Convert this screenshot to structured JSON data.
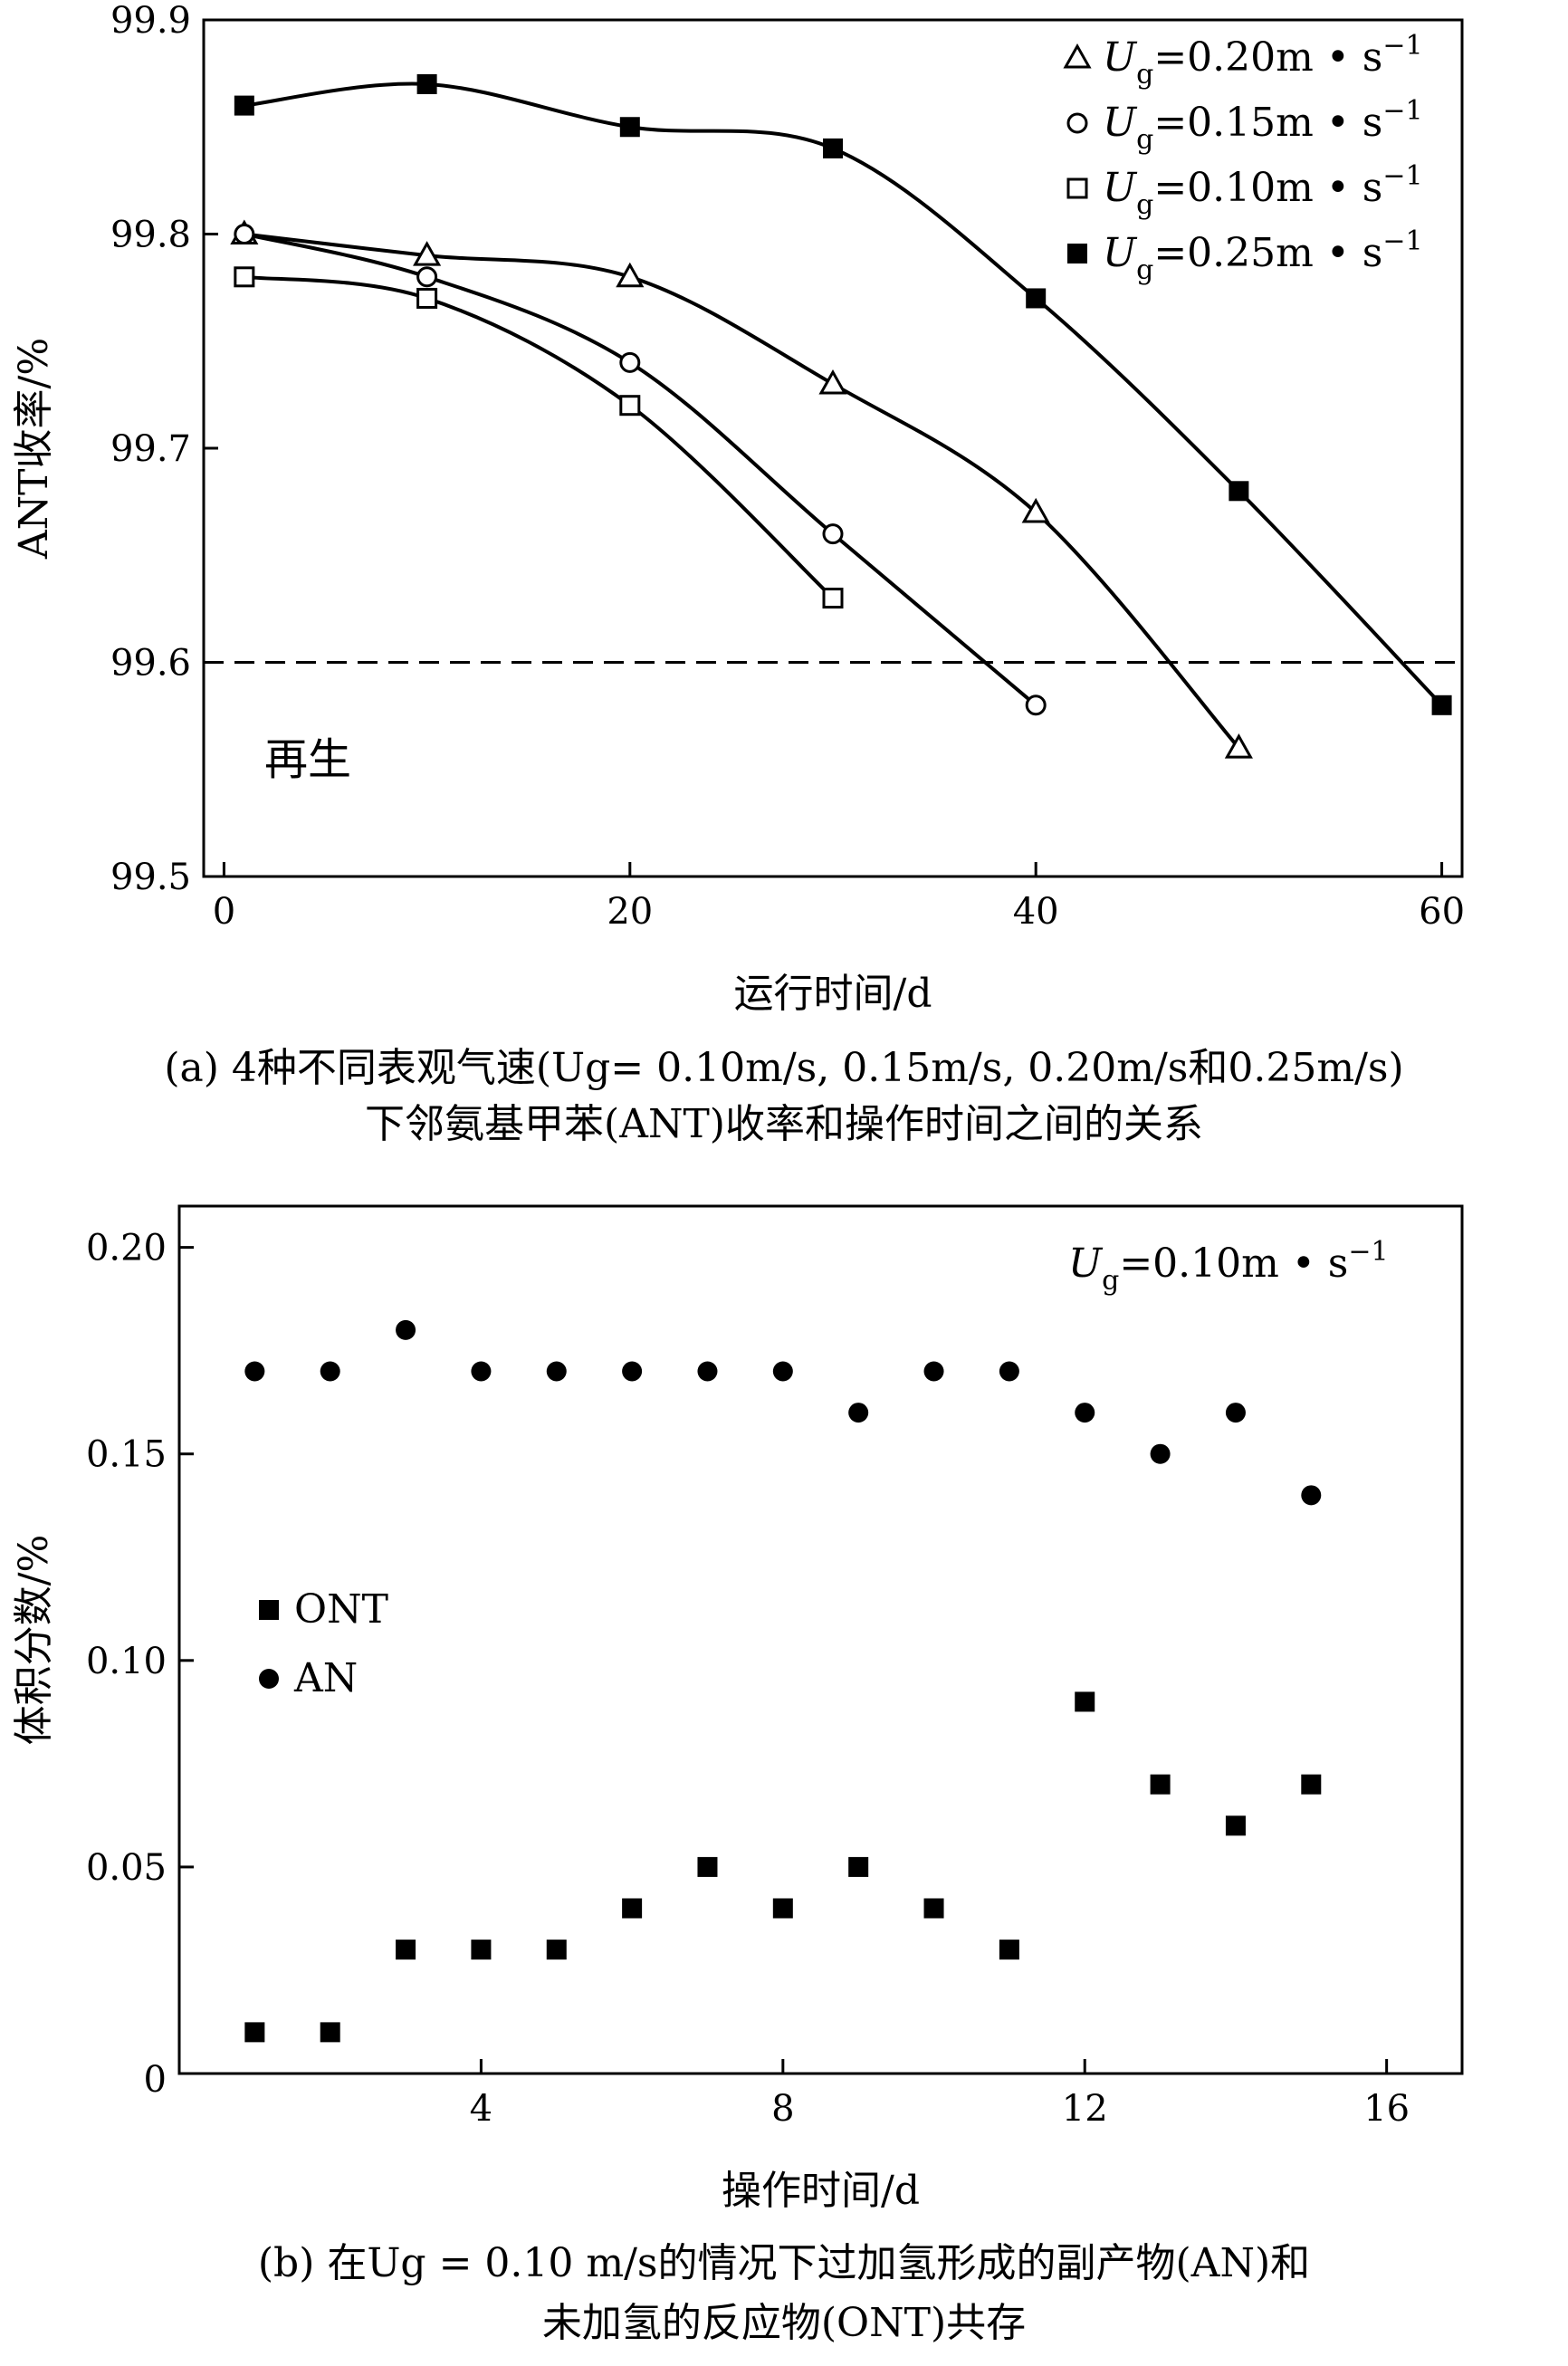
{
  "chart_data": [
    {
      "type": "line",
      "panel": "a",
      "xlabel": "运行时间/d",
      "ylabel": "ANT收率/%",
      "xlim": [
        -1,
        61
      ],
      "ylim": [
        99.5,
        99.9
      ],
      "xticks": [
        0,
        20,
        40,
        60
      ],
      "yticks": [
        99.5,
        99.6,
        99.7,
        99.8,
        99.9
      ],
      "xtick_labels": [
        "0",
        "20",
        "40",
        "60"
      ],
      "ytick_labels": [
        "99.5",
        "99.6",
        "99.7",
        "99.8",
        "99.9"
      ],
      "grid": false,
      "legend_position": "top-right",
      "reference_line": {
        "y": 99.6,
        "style": "dashed"
      },
      "annotation": "再生",
      "caption": [
        "(a) 4种不同表观气速(Ug= 0.10m/s, 0.15m/s, 0.20m/s和0.25m/s)",
        "下邻氨基甲苯(ANT)收率和操作时间之间的关系"
      ],
      "series": [
        {
          "name": "Ug=0.20m • s−1",
          "label_var": "U",
          "label_sub": "g",
          "label_val": "=0.20m • s",
          "label_sup": "−1",
          "marker": "triangle-open",
          "x": [
            1,
            10,
            20,
            30,
            40,
            50
          ],
          "y": [
            99.8,
            99.79,
            99.78,
            99.73,
            99.67,
            99.56
          ]
        },
        {
          "name": "Ug=0.15m • s−1",
          "label_var": "U",
          "label_sub": "g",
          "label_val": "=0.15m • s",
          "label_sup": "−1",
          "marker": "circle-open",
          "x": [
            1,
            10,
            20,
            30,
            40
          ],
          "y": [
            99.8,
            99.78,
            99.74,
            99.66,
            99.58
          ]
        },
        {
          "name": "Ug=0.10m • s−1",
          "label_var": "U",
          "label_sub": "g",
          "label_val": "=0.10m • s",
          "label_sup": "−1",
          "marker": "square-open",
          "x": [
            1,
            10,
            20,
            30
          ],
          "y": [
            99.78,
            99.77,
            99.72,
            99.63
          ]
        },
        {
          "name": "Ug=0.25m • s−1",
          "label_var": "U",
          "label_sub": "g",
          "label_val": "=0.25m • s",
          "label_sup": "−1",
          "marker": "square-filled",
          "x": [
            1,
            10,
            20,
            30,
            40,
            50,
            60
          ],
          "y": [
            99.86,
            99.87,
            99.85,
            99.84,
            99.77,
            99.68,
            99.58
          ]
        }
      ]
    },
    {
      "type": "scatter",
      "panel": "b",
      "xlabel": "操作时间/d",
      "ylabel": "体积分数/%",
      "xlim": [
        0,
        17
      ],
      "ylim": [
        0,
        0.21
      ],
      "xticks": [
        4,
        8,
        12,
        16
      ],
      "yticks": [
        0,
        0.05,
        0.1,
        0.15,
        0.2
      ],
      "xtick_labels": [
        "4",
        "8",
        "12",
        "16"
      ],
      "ytick_labels": [
        "0",
        "0.05",
        "0.10",
        "0.15",
        "0.20"
      ],
      "grid": false,
      "legend_position": "middle-left",
      "condition_label": {
        "var": "U",
        "sub": "g",
        "val": "=0.10m • s",
        "sup": "−1"
      },
      "caption": [
        "(b) 在Ug = 0.10 m/s的情况下过加氢形成的副产物(AN)和",
        "未加氢的反应物(ONT)共存"
      ],
      "series": [
        {
          "name": "ONT",
          "marker": "square-filled",
          "x": [
            1,
            2,
            3,
            4,
            5,
            6,
            7,
            8,
            9,
            10,
            11,
            12,
            13,
            14,
            15
          ],
          "y": [
            0.01,
            0.01,
            0.03,
            0.03,
            0.03,
            0.04,
            0.05,
            0.04,
            0.05,
            0.04,
            0.03,
            0.09,
            0.07,
            0.06,
            0.07
          ]
        },
        {
          "name": "AN",
          "marker": "circle-filled",
          "x": [
            1,
            2,
            3,
            4,
            5,
            6,
            7,
            8,
            9,
            10,
            11,
            12,
            13,
            14,
            15
          ],
          "y": [
            0.17,
            0.17,
            0.18,
            0.17,
            0.17,
            0.17,
            0.17,
            0.17,
            0.16,
            0.17,
            0.17,
            0.16,
            0.15,
            0.16,
            0.14
          ]
        }
      ]
    }
  ]
}
